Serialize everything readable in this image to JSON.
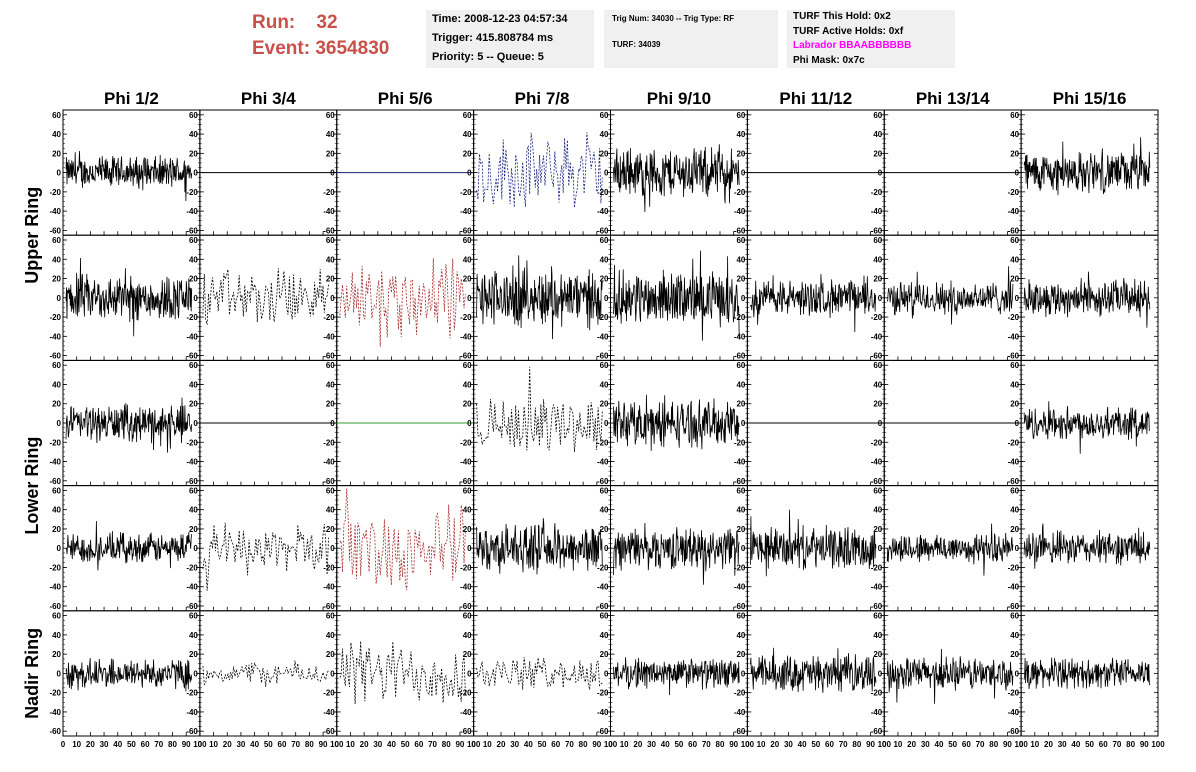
{
  "header": {
    "run_label": "Run:",
    "run_value": "32",
    "event_label": "Event:",
    "event_value": "3654830",
    "time": "Time: 2008-12-23 04:57:34",
    "trigger": "Trigger: 415.808784 ms",
    "priority": "Priority: 5 -- Queue: 5",
    "trig_num": "Trig Num: 34030 -- Trig Type: RF",
    "turf": "TURF: 34039",
    "turf_this_hold": "TURF This Hold: 0x2",
    "turf_active_holds": "TURF Active Holds: 0xf",
    "labrador": "Labrador BBAABBBBBB",
    "phi_mask": "Phi Mask: 0x7c"
  },
  "chart_data": {
    "type": "line",
    "columns": [
      "Phi 1/2",
      "Phi 3/4",
      "Phi 5/6",
      "Phi 7/8",
      "Phi 9/10",
      "Phi 11/12",
      "Phi 13/14",
      "Phi 15/16"
    ],
    "row_groups": [
      {
        "label": "Upper Ring",
        "rows": [
          0,
          1
        ]
      },
      {
        "label": "Lower Ring",
        "rows": [
          2,
          3
        ]
      },
      {
        "label": "Nadir Ring",
        "rows": [
          4
        ]
      }
    ],
    "ylim": [
      -65,
      65
    ],
    "xlim": [
      0,
      100
    ],
    "y_ticks": [
      -60,
      -40,
      -20,
      0,
      20,
      40,
      60
    ],
    "x_ticks": [
      0,
      10,
      20,
      30,
      40,
      50,
      60,
      70,
      80,
      90,
      100
    ],
    "colors": {
      "solid": "#000000",
      "blue": "#1a237e",
      "red": "#a52a2a",
      "green": "#2e9c2e",
      "dashed_black": "#000000"
    },
    "panels": [
      [
        "solid:20",
        "flat:black",
        "flat:blue",
        "dashed_blue:45",
        "solid:30",
        "flat:black",
        "flat:black",
        "solid:25"
      ],
      [
        "solid:28",
        "dashed_black:35",
        "dashed_red:50",
        "solid:35",
        "solid:32",
        "solid:22",
        "solid:20",
        "solid:22"
      ],
      [
        "solid:22",
        "flat:black",
        "flat:green",
        "dashed_black:35",
        "solid:28",
        "flat:black",
        "flat:black",
        "solid:20"
      ],
      [
        "solid:18",
        "dashed_black:30",
        "dashed_red:50",
        "solid:28",
        "solid:25",
        "solid:25",
        "solid:18",
        "solid:20"
      ],
      [
        "solid:18",
        "dashed_black:15",
        "dashed_black:40",
        "dashed_black:20",
        "solid:18",
        "solid:22",
        "solid:20",
        "solid:18"
      ]
    ]
  }
}
